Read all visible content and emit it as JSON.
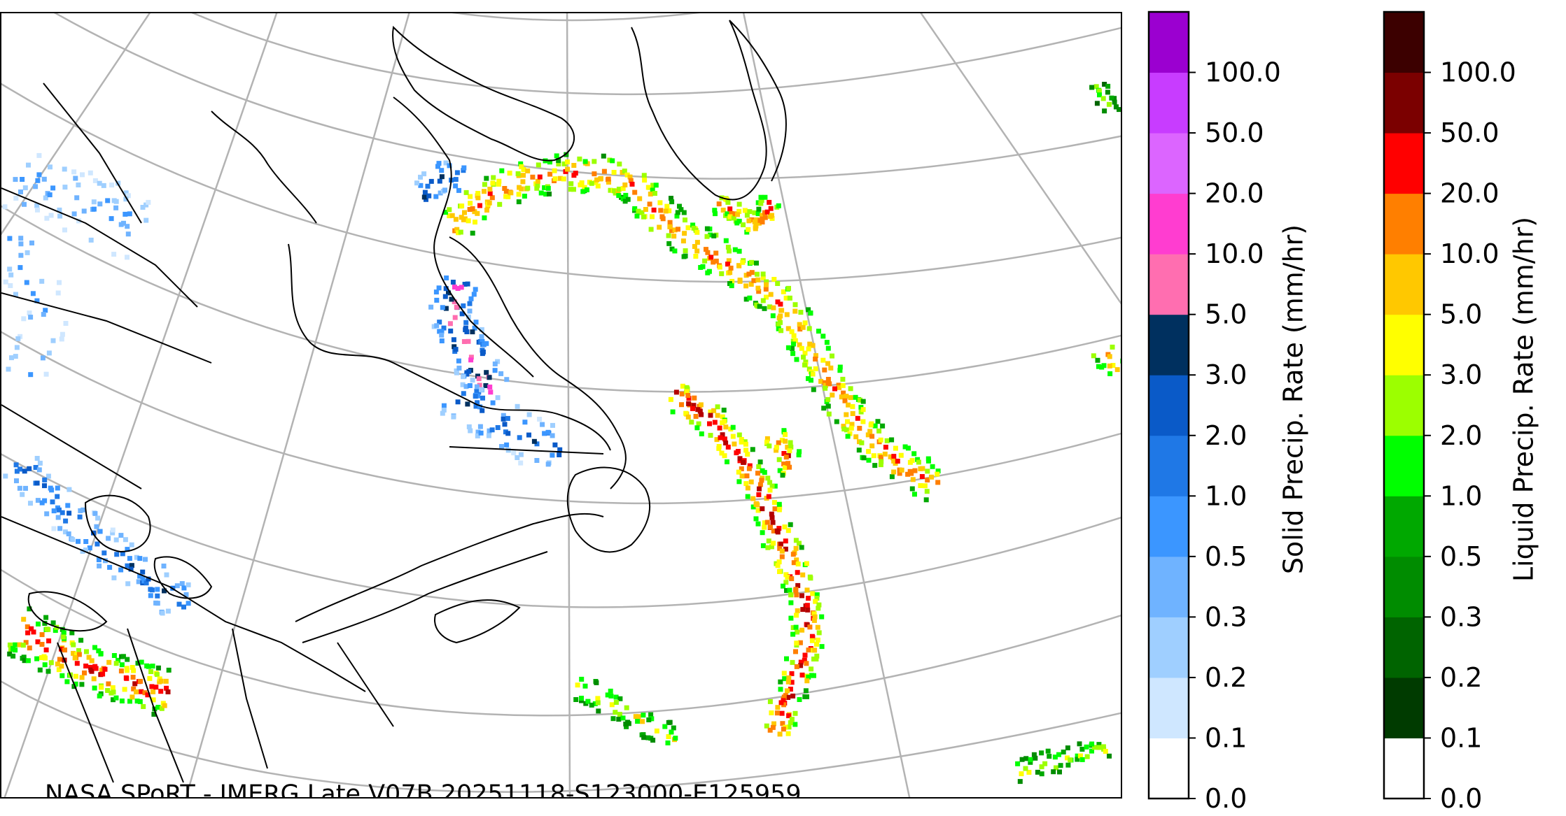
{
  "caption": "NASA SPoRT - IMERG Late V07B 20251118-S123000-E125959",
  "colorbars": {
    "solid": {
      "label": "Solid Precip. Rate (mm/hr)",
      "ticks": [
        "0.0",
        "0.1",
        "0.2",
        "0.3",
        "0.5",
        "1.0",
        "2.0",
        "3.0",
        "5.0",
        "10.0",
        "20.0",
        "50.0",
        "100.0"
      ],
      "colors": [
        "#ffffff",
        "#cfe7ff",
        "#9fcfff",
        "#6fb3ff",
        "#3b96ff",
        "#1f78e6",
        "#0a5ac8",
        "#00305f",
        "#ff6eb0",
        "#ff3dd0",
        "#dc65ff",
        "#c83cff",
        "#9b00d0"
      ]
    },
    "liquid": {
      "label": "Liquid Precip. Rate (mm/hr)",
      "ticks": [
        "0.0",
        "0.1",
        "0.2",
        "0.3",
        "0.5",
        "1.0",
        "2.0",
        "3.0",
        "5.0",
        "10.0",
        "20.0",
        "50.0",
        "100.0"
      ],
      "colors": [
        "#ffffff",
        "#003b00",
        "#006400",
        "#008c00",
        "#00a800",
        "#00ff00",
        "#9cff00",
        "#ffff00",
        "#ffc800",
        "#ff7f00",
        "#ff0000",
        "#7b0000",
        "#3c0000"
      ]
    }
  },
  "map_style": {
    "graticule_color": "#b3b3b3",
    "coastline_color": "#000000",
    "solid_colors": [
      "#cfe7ff",
      "#9fcfff",
      "#6fb3ff",
      "#3b96ff",
      "#1f78e6",
      "#0a5ac8",
      "#00305f",
      "#ff6eb0",
      "#ff3dd0"
    ],
    "liquid_colors": [
      "#006400",
      "#008c00",
      "#00a800",
      "#00ff00",
      "#9cff00",
      "#ffff00",
      "#ffc800",
      "#ff7f00",
      "#ff0000",
      "#b40000"
    ]
  }
}
